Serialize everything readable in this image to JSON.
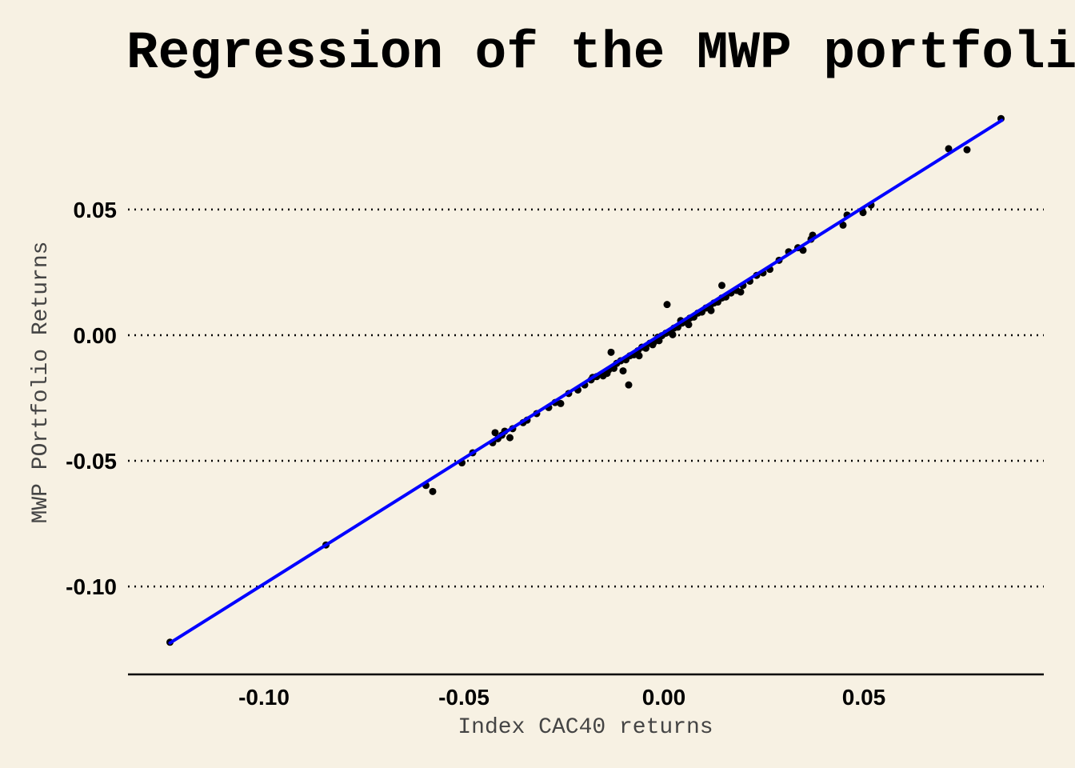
{
  "chart_data": {
    "type": "scatter",
    "title": "Regression of the MWP portfolio",
    "xlabel": "Index CAC40 returns",
    "ylabel": "MWP POrtfolio Returns",
    "xlim": [
      -0.134,
      0.095
    ],
    "ylim": [
      -0.135,
      0.092
    ],
    "x_ticks": [
      {
        "value": -0.1,
        "label": "-0.10"
      },
      {
        "value": -0.05,
        "label": "-0.05"
      },
      {
        "value": 0.0,
        "label": "0.00"
      },
      {
        "value": 0.05,
        "label": "0.05"
      }
    ],
    "y_ticks": [
      {
        "value": 0.05,
        "label": "0.05"
      },
      {
        "value": 0.0,
        "label": "0.00"
      },
      {
        "value": -0.05,
        "label": "-0.05"
      },
      {
        "value": -0.1,
        "label": "-0.10"
      }
    ],
    "grid": "horizontal-dotted",
    "legend": "none",
    "colors": {
      "background": "#f7f1e3",
      "points": "#000000",
      "regression_line": "#0000ff",
      "grid": "#000000"
    },
    "regression_line": {
      "x": [
        -0.1235,
        0.0845
      ],
      "y": [
        -0.1225,
        0.0855
      ]
    },
    "points": {
      "x": [
        -0.1235,
        -0.0845,
        -0.0595,
        -0.0578,
        -0.0505,
        -0.0478,
        -0.0428,
        -0.0422,
        -0.0415,
        -0.0405,
        -0.0398,
        -0.0385,
        -0.0378,
        -0.0352,
        -0.0342,
        -0.0318,
        -0.0288,
        -0.0272,
        -0.0258,
        -0.0238,
        -0.0215,
        -0.0198,
        -0.0182,
        -0.0168,
        -0.0152,
        -0.0138,
        -0.0125,
        -0.0118,
        -0.0108,
        -0.0095,
        -0.0085,
        -0.0075,
        -0.0065,
        -0.0055,
        -0.0045,
        -0.0035,
        -0.0025,
        -0.0015,
        -0.0005,
        0.0005,
        0.0015,
        0.0025,
        0.0035,
        0.0045,
        0.0055,
        0.0065,
        0.0075,
        0.0085,
        0.0095,
        0.0105,
        0.0115,
        0.0125,
        0.0135,
        0.0145,
        0.0155,
        0.0168,
        0.0182,
        0.0198,
        0.0215,
        0.0232,
        0.0248,
        0.0265,
        0.0288,
        0.0312,
        0.0335,
        0.0348,
        0.0368,
        0.0372,
        0.0448,
        0.0458,
        0.0498,
        0.0518,
        0.0712,
        0.0758,
        0.0843,
        -0.0132,
        -0.0088,
        0.0008,
        -0.0102,
        0.0145,
        -0.0142,
        0.0062,
        -0.0028,
        0.0022,
        -0.0062,
        0.0118,
        -0.0178,
        0.0192,
        -0.0012,
        0.0042
      ],
      "y": [
        -0.1222,
        -0.0835,
        -0.0598,
        -0.0622,
        -0.0508,
        -0.0468,
        -0.0428,
        -0.0388,
        -0.0412,
        -0.0398,
        -0.0382,
        -0.0408,
        -0.0372,
        -0.0348,
        -0.0338,
        -0.0312,
        -0.0288,
        -0.0268,
        -0.0272,
        -0.0232,
        -0.0218,
        -0.0198,
        -0.0178,
        -0.0165,
        -0.0162,
        -0.0138,
        -0.0132,
        -0.0112,
        -0.0102,
        -0.0098,
        -0.0082,
        -0.0078,
        -0.0062,
        -0.0048,
        -0.0052,
        -0.0032,
        -0.0028,
        -0.0008,
        -0.0002,
        0.0008,
        0.0012,
        0.0028,
        0.0032,
        0.0048,
        0.0052,
        0.0068,
        0.0072,
        0.0088,
        0.0092,
        0.0108,
        0.0112,
        0.0128,
        0.0132,
        0.0148,
        0.0152,
        0.0168,
        0.0178,
        0.0198,
        0.0215,
        0.0238,
        0.0248,
        0.0262,
        0.0298,
        0.0332,
        0.0348,
        0.0338,
        0.0382,
        0.0398,
        0.0438,
        0.0478,
        0.0488,
        0.0518,
        0.0742,
        0.0738,
        0.0862,
        -0.0068,
        -0.0198,
        0.0122,
        -0.0142,
        0.0198,
        -0.0152,
        0.0042,
        -0.0038,
        0.0002,
        -0.0082,
        0.0098,
        -0.0168,
        0.0172,
        -0.0022,
        0.0058
      ]
    }
  }
}
